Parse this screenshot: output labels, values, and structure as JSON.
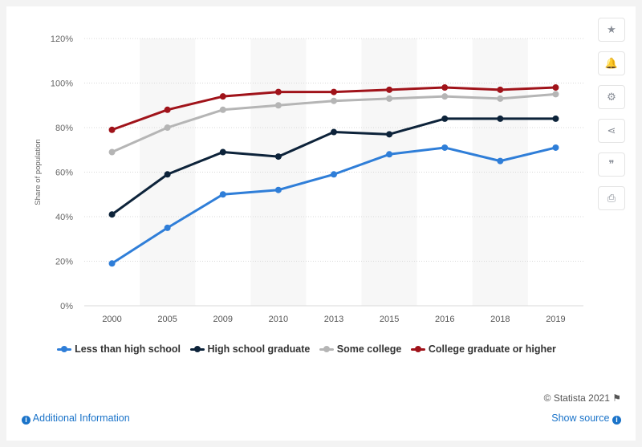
{
  "chart_data": {
    "type": "line",
    "categories": [
      "2000",
      "2005",
      "2009",
      "2010",
      "2013",
      "2015",
      "2016",
      "2018",
      "2019"
    ],
    "ylabel": "Share of population",
    "yticks": [
      "0%",
      "20%",
      "40%",
      "60%",
      "80%",
      "100%",
      "120%"
    ],
    "ylim": [
      0,
      120
    ],
    "grid": true,
    "legend_position": "bottom",
    "series": [
      {
        "name": "Less than high school",
        "color": "#2f7ed8",
        "values": [
          19,
          35,
          50,
          52,
          59,
          68,
          71,
          65,
          71
        ]
      },
      {
        "name": "High school graduate",
        "color": "#0d233a",
        "values": [
          41,
          59,
          69,
          67,
          78,
          77,
          84,
          84,
          84
        ]
      },
      {
        "name": "Some college",
        "color": "#b5b5b5",
        "values": [
          69,
          80,
          88,
          90,
          92,
          93,
          94,
          93,
          95
        ]
      },
      {
        "name": "College graduate or higher",
        "color": "#a0131a",
        "values": [
          79,
          88,
          94,
          96,
          96,
          97,
          98,
          97,
          98
        ]
      }
    ]
  },
  "sidebar": {
    "buttons": [
      {
        "icon": "star-icon",
        "glyph": "★"
      },
      {
        "icon": "bell-icon",
        "glyph": "🔔"
      },
      {
        "icon": "gear-icon",
        "glyph": "⚙"
      },
      {
        "icon": "share-icon",
        "glyph": "⋖"
      },
      {
        "icon": "quote-icon",
        "glyph": "❞"
      },
      {
        "icon": "print-icon",
        "glyph": "⎙"
      }
    ]
  },
  "footer": {
    "credit": "© Statista 2021",
    "additional_info": "Additional Information",
    "show_source": "Show source"
  }
}
